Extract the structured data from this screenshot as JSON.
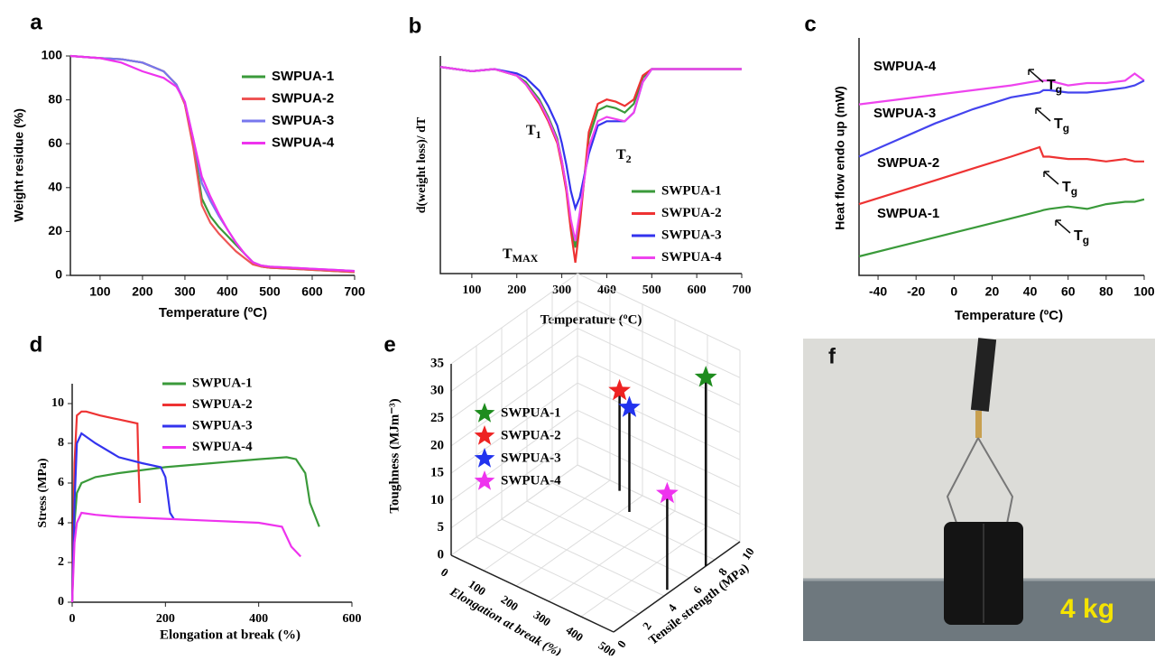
{
  "chart_data": [
    {
      "panel": "a",
      "type": "line",
      "xlabel": "Temperature (ºC)",
      "ylabel": "Weight residue (%)",
      "x": [
        30,
        100,
        150,
        200,
        250,
        280,
        300,
        320,
        340,
        360,
        380,
        400,
        420,
        440,
        460,
        480,
        500,
        550,
        600,
        650,
        700
      ],
      "xlim": [
        30,
        700
      ],
      "xticks": [
        100,
        200,
        300,
        400,
        500,
        600,
        700
      ],
      "ylim": [
        0,
        100
      ],
      "yticks": [
        0,
        20,
        40,
        60,
        80,
        100
      ],
      "series": [
        {
          "name": "SWPUA-1",
          "color": "#3a9a3a",
          "values": [
            100,
            99,
            98.5,
            97,
            93,
            87,
            78,
            60,
            35,
            27,
            22,
            18,
            14,
            10,
            6,
            4,
            3.5,
            3,
            2.5,
            2,
            1.5
          ]
        },
        {
          "name": "SWPUA-2",
          "color": "#ee5555",
          "values": [
            100,
            99,
            98.5,
            97,
            93,
            87,
            78,
            58,
            32,
            24,
            19,
            15,
            11,
            8,
            5,
            4,
            3.5,
            3,
            2.5,
            2,
            1.5
          ]
        },
        {
          "name": "SWPUA-3",
          "color": "#7777ee",
          "values": [
            100,
            99,
            98.5,
            97,
            93,
            87,
            79,
            62,
            42,
            34,
            27,
            21,
            15,
            10,
            6,
            4.5,
            4,
            3.5,
            3,
            2.5,
            2
          ]
        },
        {
          "name": "SWPUA-4",
          "color": "#ee33ee",
          "values": [
            100,
            99,
            97,
            93,
            90,
            86,
            79,
            62,
            45,
            36,
            28,
            21,
            15,
            10,
            6,
            4.5,
            4,
            3.5,
            3,
            2.5,
            2
          ]
        }
      ]
    },
    {
      "panel": "b",
      "type": "line",
      "xlabel": "Temperature (ºC)",
      "ylabel": "d(weight loss)/ dT",
      "x": [
        30,
        100,
        150,
        200,
        220,
        250,
        270,
        290,
        300,
        310,
        320,
        330,
        340,
        360,
        380,
        400,
        420,
        440,
        460,
        480,
        500,
        550,
        600,
        650,
        700
      ],
      "xlim": [
        30,
        700
      ],
      "xticks": [
        100,
        200,
        300,
        400,
        500,
        600,
        700
      ],
      "ylim": [
        0,
        100
      ],
      "annotations": [
        {
          "text": "T",
          "sub": "1"
        },
        {
          "text": "T",
          "sub": "2"
        },
        {
          "text": "T",
          "sub": "MAX"
        }
      ],
      "series": [
        {
          "name": "SWPUA-1",
          "color": "#3a9a3a",
          "values": [
            95,
            93,
            94,
            91,
            88,
            80,
            72,
            62,
            52,
            40,
            22,
            12,
            25,
            62,
            75,
            77,
            76,
            74,
            78,
            90,
            94,
            94,
            94,
            94,
            94
          ]
        },
        {
          "name": "SWPUA-2",
          "color": "#ee3333",
          "values": [
            95,
            93,
            94,
            91,
            87,
            78,
            70,
            60,
            50,
            38,
            20,
            5,
            22,
            65,
            78,
            80,
            79,
            77,
            80,
            91,
            94,
            94,
            94,
            94,
            94
          ]
        },
        {
          "name": "SWPUA-3",
          "color": "#3333ee",
          "values": [
            95,
            93,
            94,
            92,
            90,
            84,
            77,
            68,
            60,
            50,
            38,
            30,
            35,
            55,
            68,
            70,
            70,
            70,
            74,
            88,
            94,
            94,
            94,
            94,
            94
          ]
        },
        {
          "name": "SWPUA-4",
          "color": "#ee44ee",
          "values": [
            95,
            93,
            94,
            91,
            87,
            79,
            71,
            61,
            52,
            40,
            25,
            15,
            28,
            58,
            70,
            72,
            71,
            70,
            74,
            88,
            94,
            94,
            94,
            94,
            94
          ]
        }
      ]
    },
    {
      "panel": "c",
      "type": "line",
      "xlabel": "Temperature (ºC)",
      "ylabel": "Heat flow endo up (mW)",
      "x": [
        -50,
        -30,
        -10,
        10,
        30,
        45,
        47,
        50,
        60,
        70,
        80,
        90,
        95,
        100
      ],
      "xlim": [
        -50,
        100
      ],
      "xticks": [
        -40,
        -20,
        0,
        20,
        40,
        60,
        80,
        100
      ],
      "ylim": [
        0,
        100
      ],
      "annotations": [
        {
          "text": "T",
          "sub": "g"
        },
        {
          "text": "T",
          "sub": "g"
        },
        {
          "text": "T",
          "sub": "g"
        },
        {
          "text": "T",
          "sub": "g"
        }
      ],
      "series": [
        {
          "name": "SWPUA-4",
          "color": "#ee44ee",
          "values": [
            72,
            74,
            76,
            78,
            80,
            82,
            82,
            82,
            80,
            81,
            81,
            82,
            85,
            82
          ]
        },
        {
          "name": "SWPUA-3",
          "color": "#4444ee",
          "values": [
            50,
            57,
            64,
            70,
            75,
            77,
            78,
            78,
            77,
            77,
            78,
            79,
            80,
            82
          ]
        },
        {
          "name": "SWPUA-2",
          "color": "#ee3333",
          "values": [
            30,
            35,
            40,
            45,
            50,
            54,
            50,
            50,
            49,
            49,
            48,
            49,
            48,
            48
          ]
        },
        {
          "name": "SWPUA-1",
          "color": "#3a9a3a",
          "values": [
            8,
            12,
            16,
            20,
            24,
            27,
            27.5,
            28,
            29,
            28,
            30,
            31,
            31,
            32
          ]
        }
      ]
    },
    {
      "panel": "d",
      "type": "line",
      "xlabel": "Elongation at break (%)",
      "ylabel": "Stress (MPa)",
      "xlim": [
        0,
        600
      ],
      "xticks": [
        0,
        200,
        400,
        600
      ],
      "ylim": [
        0,
        11
      ],
      "yticks": [
        0,
        2,
        4,
        6,
        8,
        10
      ],
      "series": [
        {
          "name": "SWPUA-1",
          "color": "#3a9a3a",
          "x": [
            0,
            5,
            10,
            20,
            50,
            100,
            200,
            300,
            400,
            460,
            480,
            500,
            510,
            530
          ],
          "values": [
            0,
            4,
            5.5,
            6,
            6.3,
            6.5,
            6.8,
            7,
            7.2,
            7.3,
            7.2,
            6.5,
            5,
            3.8
          ]
        },
        {
          "name": "SWPUA-2",
          "color": "#ee3333",
          "x": [
            0,
            5,
            10,
            20,
            30,
            60,
            100,
            140,
            142,
            145
          ],
          "values": [
            0,
            7,
            9.4,
            9.6,
            9.6,
            9.4,
            9.2,
            9,
            7,
            5
          ]
        },
        {
          "name": "SWPUA-3",
          "color": "#3333ee",
          "x": [
            0,
            5,
            10,
            20,
            50,
            100,
            150,
            190,
            200,
            210,
            218
          ],
          "values": [
            0,
            5,
            8,
            8.5,
            8,
            7.3,
            7,
            6.8,
            6.3,
            4.5,
            4.2
          ]
        },
        {
          "name": "SWPUA-4",
          "color": "#ee33ee",
          "x": [
            0,
            5,
            10,
            20,
            50,
            100,
            200,
            300,
            400,
            450,
            470,
            490
          ],
          "values": [
            0,
            3,
            4,
            4.5,
            4.4,
            4.3,
            4.2,
            4.1,
            4,
            3.8,
            2.8,
            2.3
          ]
        }
      ]
    },
    {
      "panel": "e",
      "type": "scatter3d",
      "xlabel": "Elongation at break (%)",
      "ylabel": "Tensile strength (MPa)",
      "zlabel": "Toughness (MJm⁻³)",
      "xlim": [
        0,
        500
      ],
      "xticks": [
        0,
        100,
        200,
        300,
        400,
        500
      ],
      "ylim": [
        0,
        10
      ],
      "yticks": [
        0,
        2,
        4,
        6,
        8,
        10
      ],
      "zlim": [
        0,
        35
      ],
      "zticks": [
        0,
        5,
        10,
        15,
        20,
        25,
        30,
        35
      ],
      "series": [
        {
          "name": "SWPUA-1",
          "color": "#1e8c1e",
          "x": 500,
          "y": 7.3,
          "z": 34.5
        },
        {
          "name": "SWPUA-2",
          "color": "#ee2222",
          "x": 145,
          "y": 9.6,
          "z": 18.3
        },
        {
          "name": "SWPUA-3",
          "color": "#2233ee",
          "x": 218,
          "y": 8.5,
          "z": 19.1
        },
        {
          "name": "SWPUA-4",
          "color": "#ee33ee",
          "x": 490,
          "y": 4.5,
          "z": 17.6
        }
      ]
    }
  ],
  "photo": {
    "panel": "f",
    "label": "4 kg"
  }
}
